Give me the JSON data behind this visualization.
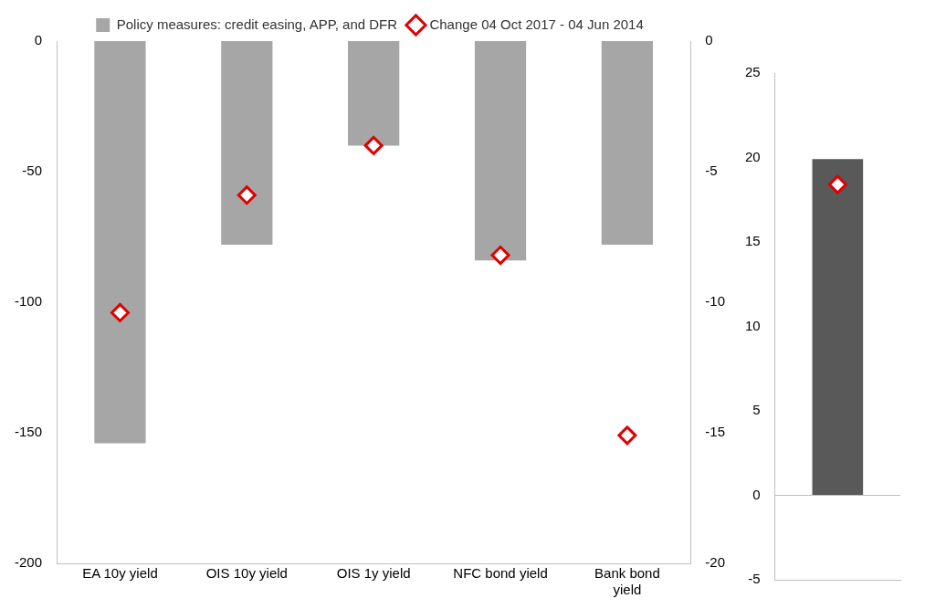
{
  "chart_data": [
    {
      "type": "bar",
      "categories": [
        "EA 10y yield",
        "OIS 10y yield",
        "OIS 1y yield",
        "NFC bond yield",
        "Bank bond yield"
      ],
      "ylim": [
        -200,
        0
      ],
      "yticks": [
        -200,
        -150,
        -100,
        -50,
        0
      ],
      "y2lim": [
        -20,
        0
      ],
      "y2ticks": [
        -20,
        -15,
        -10,
        -5,
        0
      ],
      "grid": false,
      "legend": "top",
      "series": [
        {
          "name": "Policy measures: credit easing, APP, and DFR",
          "color": "#a6a6a6",
          "values": [
            -154,
            -78,
            -40,
            -84,
            -78
          ]
        },
        {
          "type": "scatter",
          "name": "Change 04 Oct 2017 - 04 Jun 2014",
          "color": "#e00000",
          "marker": "diamond",
          "values": [
            -104,
            -59,
            -40,
            -82,
            -151
          ]
        }
      ]
    },
    {
      "type": "bar",
      "categories": [
        null
      ],
      "ylim": [
        -5,
        25
      ],
      "yticks": [
        -5,
        0,
        5,
        10,
        15,
        20,
        25
      ],
      "grid": false,
      "ref_lines": [
        {
          "axis": "y",
          "value": 0,
          "color": "#bfbfbf"
        }
      ],
      "series": [
        {
          "color": "#595959",
          "values": [
            19.9
          ]
        },
        {
          "type": "scatter",
          "color": "#e00000",
          "marker": "diamond",
          "values": [
            18.4
          ]
        }
      ]
    }
  ]
}
